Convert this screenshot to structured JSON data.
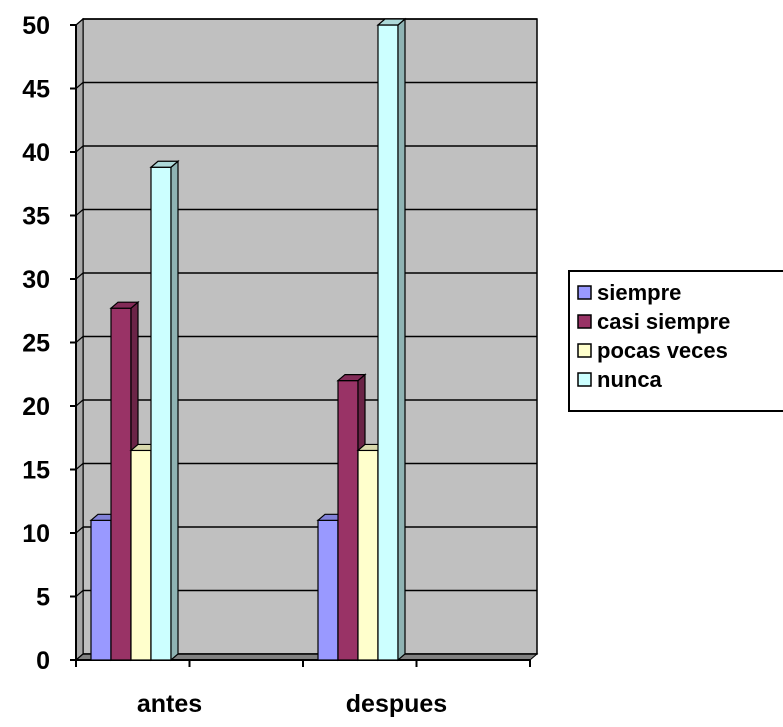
{
  "chart_data": {
    "type": "bar",
    "categories": [
      "antes",
      "despues"
    ],
    "series": [
      {
        "name": "siempre",
        "values": [
          11,
          11
        ],
        "color": "#9999FF"
      },
      {
        "name": "casi siempre",
        "values": [
          27.7,
          22
        ],
        "color": "#993366"
      },
      {
        "name": "pocas veces",
        "values": [
          16.5,
          16.5
        ],
        "color": "#FFFFCC"
      },
      {
        "name": "nunca",
        "values": [
          38.8,
          50
        ],
        "color": "#CCFFFF"
      }
    ],
    "title": "",
    "xlabel": "",
    "ylabel": "",
    "ylim": [
      0,
      50
    ],
    "yticks": [
      "0",
      "5",
      "10",
      "15",
      "20",
      "25",
      "30",
      "35",
      "40",
      "45",
      "50"
    ],
    "grid": true,
    "legend": "right",
    "three_d": true,
    "wall_color": "#C0C0C0"
  }
}
